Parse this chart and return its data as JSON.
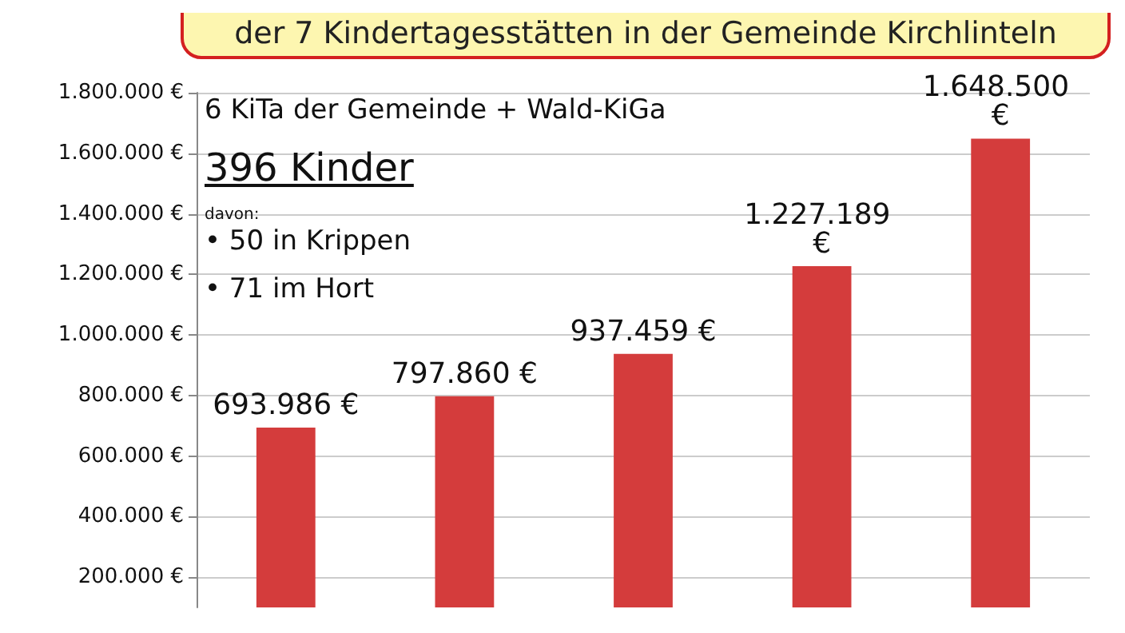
{
  "chart_data": {
    "type": "bar",
    "title": "der 7 Kindertagesstätten in der Gemeinde Kirchlinteln",
    "categories": [
      null,
      null,
      null,
      null,
      null
    ],
    "values": [
      693986,
      797860,
      937459,
      1227189,
      1648500
    ],
    "value_labels": [
      "693.986 €",
      "797.860 €",
      "937.459 €",
      "1.227.189 €",
      "1.648.500 €"
    ],
    "color": "#d43c3c",
    "ylim": [
      100000,
      1800000
    ],
    "yticks": [
      {
        "value": 200000,
        "label": "200.000 €"
      },
      {
        "value": 400000,
        "label": "400.000 €"
      },
      {
        "value": 600000,
        "label": "600.000 €"
      },
      {
        "value": 800000,
        "label": "800.000 €"
      },
      {
        "value": 1000000,
        "label": "1.000.000 €"
      },
      {
        "value": 1200000,
        "label": "1.200.000 €"
      },
      {
        "value": 1400000,
        "label": "1.400.000 €"
      },
      {
        "value": 1600000,
        "label": "1.600.000 €"
      },
      {
        "value": 1800000,
        "label": "1.800.000 €"
      }
    ],
    "grid": "y",
    "annotations": [
      "6 KiTa der Gemeinde + Wald-KiGa",
      "396 Kinder",
      "davon:",
      "• 50 in Krippen",
      "• 71 im Hort"
    ]
  }
}
